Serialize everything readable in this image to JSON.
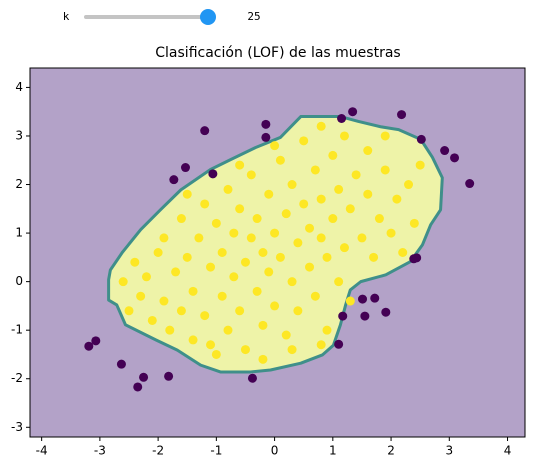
{
  "widget": {
    "label": "k",
    "value": 25
  },
  "chart_data": {
    "type": "scatter",
    "title": "Clasificación (LOF) de las muestras",
    "xlim": [
      -4.2,
      4.3
    ],
    "ylim": [
      -3.2,
      4.4
    ],
    "xticks": [
      -4,
      -3,
      -2,
      -1,
      0,
      1,
      2,
      3,
      4
    ],
    "yticks": [
      -3,
      -2,
      -1,
      0,
      1,
      2,
      3,
      4
    ],
    "background": "#b3a2c8",
    "region": {
      "color": "#eef3a8",
      "edge": "#3f8f8a",
      "x": [
        -2.85,
        -2.85,
        -2.71,
        -2.56,
        -2.04,
        -1.67,
        -1.27,
        -0.93,
        -0.41,
        -0.07,
        0.45,
        0.82,
        1.01,
        1.13,
        1.22,
        1.3,
        1.48,
        1.91,
        2.33,
        2.54,
        2.68,
        2.85,
        2.88,
        2.71,
        2.51,
        2.13,
        1.82,
        1.44,
        1.13,
        0.45,
        0.1,
        -0.33,
        -0.76,
        -1.1,
        -1.61,
        -1.96,
        -2.3,
        -2.61,
        -2.82
      ],
      "y": [
        0.04,
        -0.38,
        -0.48,
        -0.89,
        -1.2,
        -1.41,
        -1.72,
        -1.86,
        -1.86,
        -1.82,
        -1.68,
        -1.51,
        -1.31,
        -0.89,
        -0.48,
        -0.17,
        0.0,
        0.14,
        0.41,
        0.76,
        1.17,
        1.48,
        2.14,
        2.56,
        2.93,
        3.13,
        3.19,
        3.3,
        3.4,
        3.4,
        2.97,
        2.76,
        2.51,
        2.31,
        1.89,
        1.48,
        1.07,
        0.61,
        0.24
      ]
    },
    "series": [
      {
        "color": "#fde725",
        "x": [
          -2.4,
          -2.3,
          -2.2,
          -2.1,
          -2.0,
          -1.9,
          -1.9,
          -1.8,
          -1.7,
          -1.6,
          -1.6,
          -1.5,
          -1.4,
          -1.4,
          -1.3,
          -1.2,
          -1.2,
          -1.1,
          -1.0,
          -1.0,
          -0.9,
          -0.9,
          -0.8,
          -0.8,
          -0.7,
          -0.7,
          -0.6,
          -0.6,
          -0.5,
          -0.5,
          -0.4,
          -0.4,
          -0.3,
          -0.3,
          -0.2,
          -0.2,
          -0.1,
          -0.1,
          0.0,
          0.0,
          0.1,
          0.1,
          0.2,
          0.2,
          0.3,
          0.3,
          0.4,
          0.4,
          0.5,
          0.5,
          0.6,
          0.6,
          0.7,
          0.7,
          0.8,
          0.8,
          0.9,
          0.9,
          1.0,
          1.0,
          1.1,
          1.1,
          1.2,
          1.2,
          1.3,
          1.3,
          1.4,
          1.5,
          1.6,
          1.6,
          1.7,
          1.8,
          1.9,
          2.0,
          2.1,
          2.2,
          2.3,
          2.4,
          2.5,
          -2.6,
          -2.5,
          -1.1,
          -0.2,
          0.3,
          0.8,
          -1.5,
          -0.6,
          0.0,
          0.8,
          1.9
        ],
        "y": [
          0.4,
          -0.3,
          0.1,
          -0.8,
          0.6,
          -0.4,
          0.9,
          -1.0,
          0.2,
          -0.6,
          1.3,
          0.5,
          -1.2,
          -0.2,
          0.9,
          1.6,
          -0.7,
          0.3,
          -1.5,
          1.2,
          -0.3,
          0.6,
          1.9,
          -1.0,
          0.1,
          1.0,
          -0.6,
          1.5,
          0.4,
          -1.4,
          2.2,
          0.9,
          -0.2,
          1.3,
          0.6,
          -0.9,
          1.8,
          0.2,
          -0.5,
          1.0,
          2.5,
          0.5,
          -1.1,
          1.4,
          0.0,
          2.0,
          0.8,
          -0.6,
          1.6,
          2.9,
          0.3,
          1.1,
          -0.3,
          2.3,
          0.9,
          1.7,
          -1.0,
          0.5,
          2.6,
          1.3,
          0.0,
          1.9,
          0.7,
          3.0,
          1.5,
          -0.4,
          2.2,
          0.9,
          1.8,
          2.7,
          0.5,
          1.3,
          2.3,
          1.0,
          1.7,
          0.6,
          2.0,
          1.2,
          2.4,
          0.0,
          -0.6,
          -1.3,
          -1.6,
          -1.4,
          -1.3,
          1.8,
          2.4,
          2.8,
          3.2,
          3.0
        ]
      },
      {
        "color": "#440154",
        "x": [
          -3.19,
          -3.07,
          -2.63,
          -2.25,
          -2.35,
          -1.82,
          -1.73,
          -1.53,
          -1.2,
          -1.06,
          -0.15,
          -0.15,
          1.15,
          1.34,
          2.18,
          2.52,
          2.92,
          3.09,
          3.35,
          1.17,
          1.1,
          1.51,
          1.55,
          1.72,
          1.91,
          2.39,
          2.44,
          -0.38
        ],
        "y": [
          -1.33,
          -1.22,
          -1.7,
          -1.97,
          -2.17,
          -1.95,
          2.1,
          2.35,
          3.11,
          2.22,
          2.97,
          3.24,
          3.36,
          3.5,
          3.44,
          2.93,
          2.7,
          2.55,
          2.02,
          -0.71,
          -1.29,
          -0.36,
          -0.71,
          -0.34,
          -0.63,
          0.47,
          0.49,
          -1.99
        ]
      }
    ]
  }
}
